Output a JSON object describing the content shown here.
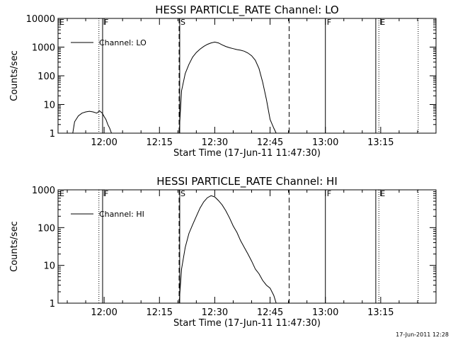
{
  "footer": {
    "timestamp": "17-Jun-2011 12:28"
  },
  "chart_data": [
    {
      "type": "line",
      "title": "HESSI PARTICLE_RATE Channel: LO",
      "xlabel": "Start Time (17-Jun-11 11:47:30)",
      "ylabel": "Counts/sec",
      "yscale": "log",
      "ylim": [
        1,
        10000
      ],
      "xlim": [
        "11:47:30",
        "13:30:00"
      ],
      "xticks": [
        "12:00",
        "12:15",
        "12:30",
        "12:45",
        "13:00",
        "13:15"
      ],
      "yticks": [
        "1",
        "10",
        "100",
        "1000",
        "10000"
      ],
      "legend": {
        "position": "top-left",
        "entries": [
          "Channel: LO"
        ]
      },
      "series": [
        {
          "name": "Channel: LO",
          "x": [
            "11:51:30",
            "11:52:00",
            "11:53:00",
            "11:54:00",
            "11:55:00",
            "11:56:00",
            "11:57:00",
            "11:58:00",
            "11:58:45",
            "11:59:30",
            "12:00:00",
            "12:00:30",
            "12:01:00",
            "12:01:30",
            "12:02:00",
            "12:20:20",
            "12:21:00",
            "12:22:00",
            "12:23:00",
            "12:24:00",
            "12:25:00",
            "12:26:00",
            "12:27:00",
            "12:28:00",
            "12:29:00",
            "12:30:00",
            "12:31:00",
            "12:32:00",
            "12:33:00",
            "12:34:00",
            "12:35:00",
            "12:36:00",
            "12:37:00",
            "12:38:00",
            "12:39:00",
            "12:40:00",
            "12:41:00",
            "12:42:00",
            "12:43:00",
            "12:44:00",
            "12:45:00",
            "12:46:00",
            "12:46:40"
          ],
          "y": [
            1,
            2.5,
            4,
            5,
            5.5,
            5.8,
            5.5,
            5,
            6,
            5,
            3.8,
            3,
            2,
            1.5,
            1,
            1,
            30,
            120,
            250,
            450,
            650,
            850,
            1050,
            1250,
            1400,
            1500,
            1400,
            1200,
            1050,
            950,
            880,
            820,
            780,
            720,
            620,
            500,
            350,
            180,
            60,
            15,
            3,
            1.5,
            1
          ]
        }
      ],
      "markers": [
        {
          "label": "E",
          "time": "11:47:30",
          "style": "solid"
        },
        {
          "label": "",
          "time": "11:58:35",
          "style": "dotted"
        },
        {
          "label": "F",
          "time": "11:59:35",
          "style": "solid"
        },
        {
          "label": "S",
          "time": "12:20:20",
          "style": "dashed"
        },
        {
          "label": "",
          "time": "12:20:30",
          "style": "solid"
        },
        {
          "label": "",
          "time": "12:50:10",
          "style": "dashed"
        },
        {
          "label": "F",
          "time": "13:00:00",
          "style": "solid"
        },
        {
          "label": "",
          "time": "13:13:40",
          "style": "solid"
        },
        {
          "label": "E",
          "time": "13:14:30",
          "style": "dotted"
        },
        {
          "label": "",
          "time": "13:25:10",
          "style": "dotted"
        }
      ]
    },
    {
      "type": "line",
      "title": "HESSI PARTICLE_RATE Channel: HI",
      "xlabel": "Start Time (17-Jun-11 11:47:30)",
      "ylabel": "Counts/sec",
      "yscale": "log",
      "ylim": [
        1,
        1000
      ],
      "xlim": [
        "11:47:30",
        "13:30:00"
      ],
      "xticks": [
        "12:00",
        "12:15",
        "12:30",
        "12:45",
        "13:00",
        "13:15"
      ],
      "yticks": [
        "1",
        "10",
        "100",
        "1000"
      ],
      "legend": {
        "position": "top-left",
        "entries": [
          "Channel: HI"
        ]
      },
      "series": [
        {
          "name": "Channel: HI",
          "x": [
            "12:20:20",
            "12:21:00",
            "12:22:00",
            "12:23:00",
            "12:24:00",
            "12:25:00",
            "12:26:00",
            "12:27:00",
            "12:28:00",
            "12:29:00",
            "12:30:00",
            "12:31:00",
            "12:32:00",
            "12:33:00",
            "12:34:00",
            "12:35:00",
            "12:36:00",
            "12:37:00",
            "12:38:00",
            "12:39:00",
            "12:40:00",
            "12:41:00",
            "12:42:00",
            "12:43:00",
            "12:44:00",
            "12:45:00",
            "12:46:00",
            "12:46:40"
          ],
          "y": [
            1,
            8,
            30,
            70,
            120,
            200,
            330,
            480,
            620,
            700,
            650,
            520,
            400,
            280,
            180,
            110,
            75,
            45,
            30,
            20,
            13,
            8,
            6,
            4,
            3,
            2.5,
            1.6,
            1
          ]
        }
      ],
      "markers": [
        {
          "label": "E",
          "time": "11:47:30",
          "style": "solid"
        },
        {
          "label": "",
          "time": "11:58:35",
          "style": "dotted"
        },
        {
          "label": "F",
          "time": "11:59:35",
          "style": "solid"
        },
        {
          "label": "S",
          "time": "12:20:20",
          "style": "dashed"
        },
        {
          "label": "",
          "time": "12:20:30",
          "style": "solid"
        },
        {
          "label": "",
          "time": "12:50:10",
          "style": "dashed"
        },
        {
          "label": "F",
          "time": "13:00:00",
          "style": "solid"
        },
        {
          "label": "",
          "time": "13:13:40",
          "style": "solid"
        },
        {
          "label": "E",
          "time": "13:14:30",
          "style": "dotted"
        },
        {
          "label": "",
          "time": "13:25:10",
          "style": "dotted"
        }
      ]
    }
  ]
}
